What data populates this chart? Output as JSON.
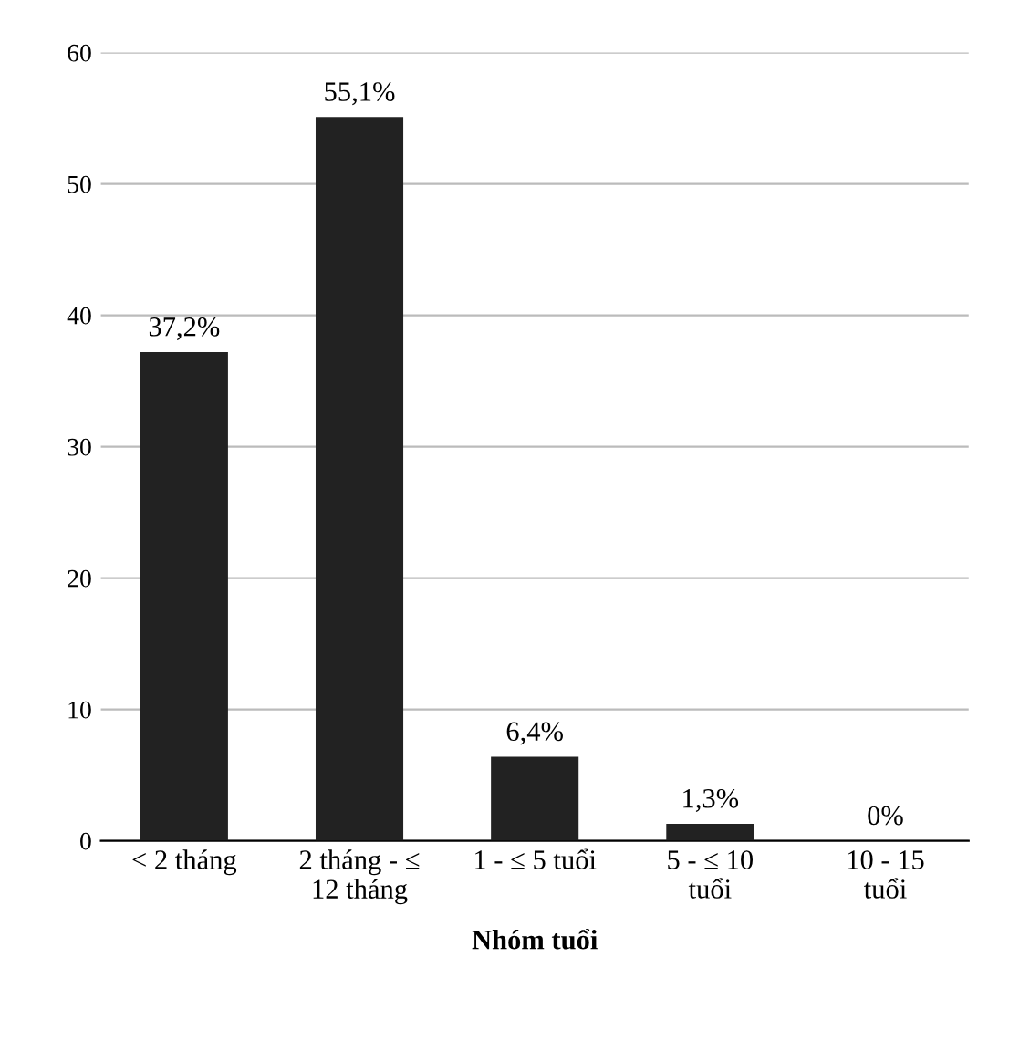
{
  "chart_data": {
    "type": "bar",
    "xlabel": "Nhóm tuổi",
    "categories": [
      "< 2 tháng",
      "2 tháng - ≤\n12 tháng",
      "1 - ≤ 5 tuổi",
      "5 - ≤ 10\ntuổi",
      "10 - 15\ntuổi"
    ],
    "values": [
      37.2,
      55.1,
      6.4,
      1.3,
      0
    ],
    "value_labels": [
      "37,2%",
      "55,1%",
      "6,4%",
      "1,3%",
      "0%"
    ],
    "color": "#222222",
    "ylim": [
      0,
      60
    ],
    "yticks": [
      0,
      10,
      20,
      30,
      40,
      50,
      60
    ],
    "grid": "y",
    "legend": false
  }
}
